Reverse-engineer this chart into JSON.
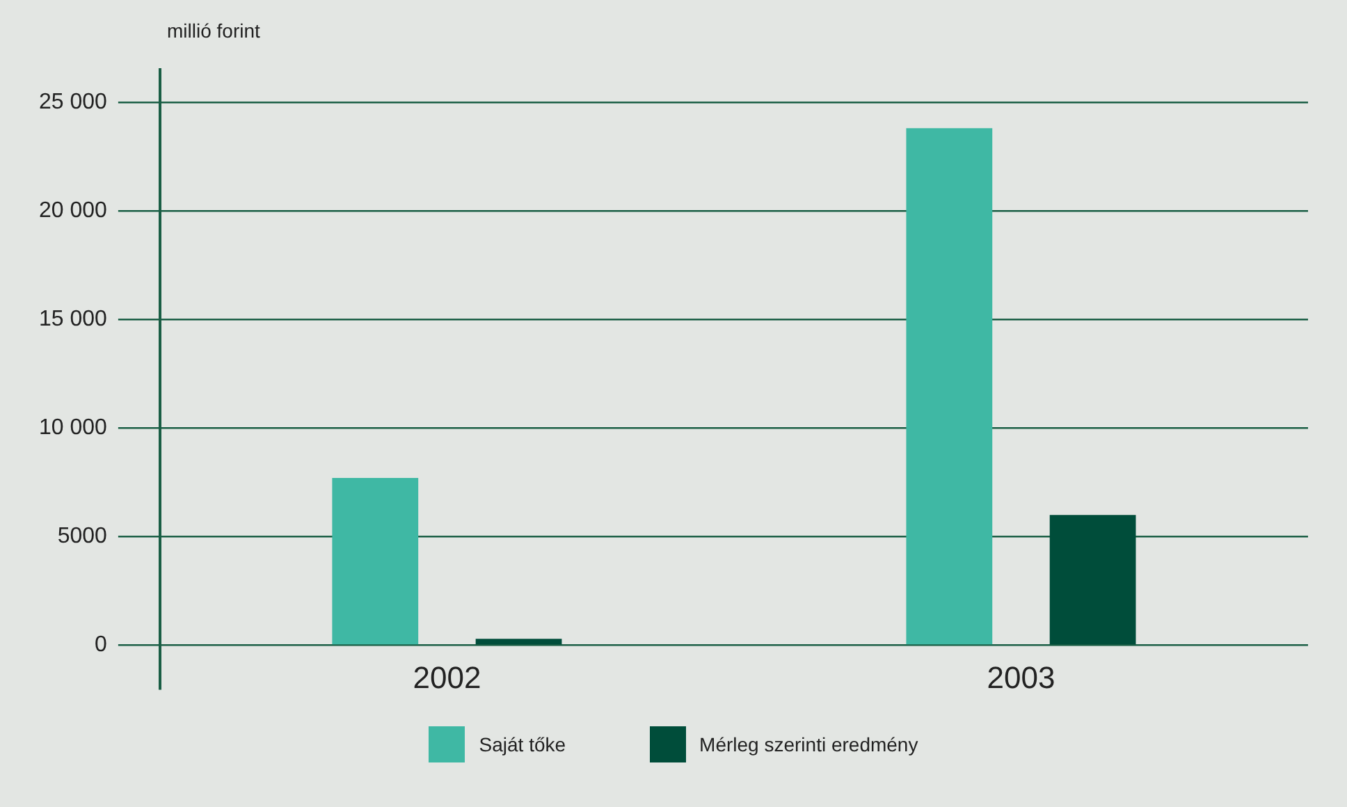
{
  "chart_data": {
    "type": "bar",
    "ylabel": "millió forint",
    "categories": [
      "2002",
      "2003"
    ],
    "series": [
      {
        "name": "Saját tőke",
        "color": "#3fb8a4",
        "values": [
          7700,
          23800
        ]
      },
      {
        "name": "Mérleg szerinti eredmény",
        "color": "#004d3a",
        "values": [
          300,
          6000
        ]
      }
    ],
    "ylim": [
      -2000,
      26500
    ],
    "yticks": [
      0,
      5000,
      {
        "value": 10000,
        "label": "10 000"
      },
      {
        "value": 15000,
        "label": "15 000"
      },
      {
        "value": 20000,
        "label": "20 000"
      },
      {
        "value": 25000,
        "label": "25 000"
      }
    ],
    "grid": "y",
    "legend": "bottom"
  }
}
